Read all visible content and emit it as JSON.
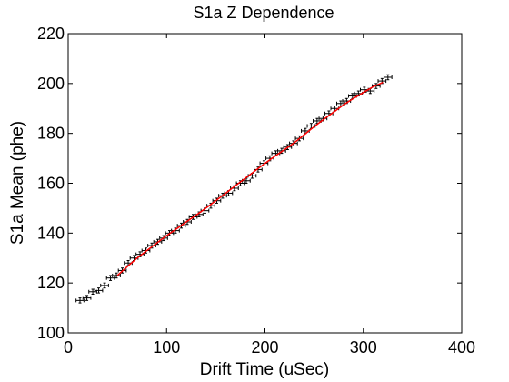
{
  "chart_data": {
    "type": "scatter",
    "title": "S1a Z Dependence",
    "xlabel": "Drift Time (uSec)",
    "ylabel": "S1a Mean (phe)",
    "xlim": [
      0,
      400
    ],
    "ylim": [
      100,
      220
    ],
    "xticks": [
      "0",
      "100",
      "200",
      "300",
      "400"
    ],
    "yticks": [
      "100",
      "120",
      "140",
      "160",
      "180",
      "200",
      "220"
    ],
    "grid": false,
    "legend": "none",
    "colors": {
      "points": "#000000",
      "fit": "#ff0000",
      "axes": "#000000"
    },
    "x_error_half_width": 4,
    "series": [
      {
        "type": "scatter",
        "x": [
          12,
          19,
          25,
          31,
          37,
          43,
          49,
          55,
          61,
          67,
          73,
          79,
          85,
          91,
          97,
          103,
          109,
          115,
          121,
          127,
          133,
          139,
          145,
          151,
          157,
          163,
          169,
          175,
          181,
          187,
          193,
          199,
          205,
          211,
          217,
          223,
          229,
          235,
          241,
          247,
          253,
          259,
          265,
          271,
          277,
          283,
          289,
          295,
          301,
          307,
          313,
          319,
          325
        ],
        "y": [
          113,
          114,
          116.5,
          117,
          119,
          122,
          123,
          125,
          128,
          130,
          131.5,
          133,
          135,
          136.5,
          138,
          140,
          141,
          143,
          144.5,
          146.5,
          147.5,
          149,
          151,
          153,
          155,
          156,
          158,
          160,
          161,
          163,
          165.5,
          168,
          170,
          172,
          173,
          174.5,
          176,
          178,
          181,
          183,
          185,
          186,
          188,
          190,
          192,
          193,
          195,
          196,
          197.5,
          197,
          199,
          201,
          202.5
        ],
        "y_err": [
          1,
          1,
          1,
          1,
          1,
          1,
          1,
          1,
          1,
          1,
          1,
          1,
          1,
          1,
          1,
          1,
          1,
          1,
          1,
          1,
          1,
          1,
          1,
          1,
          1,
          1,
          1,
          1,
          1,
          1,
          1,
          1,
          1,
          1,
          1,
          1,
          1,
          1,
          1,
          1,
          1,
          1,
          1,
          1,
          1,
          1,
          1,
          1,
          1,
          1,
          1,
          1,
          1
        ]
      },
      {
        "type": "line",
        "x": [
          50,
          60,
          70,
          80,
          90,
          100,
          110,
          120,
          130,
          140,
          150,
          160,
          170,
          180,
          190,
          200,
          210,
          220,
          230,
          240,
          250,
          260,
          270,
          280,
          290,
          300,
          310,
          320
        ],
        "y": [
          123,
          126.5,
          130,
          133,
          136,
          139,
          141.7,
          144.5,
          147.2,
          150,
          153,
          156,
          159,
          162,
          165,
          168,
          170.8,
          173.5,
          176.3,
          179.5,
          182.7,
          185.7,
          188.6,
          191.5,
          194,
          196.4,
          198.7,
          200.5
        ]
      }
    ]
  }
}
